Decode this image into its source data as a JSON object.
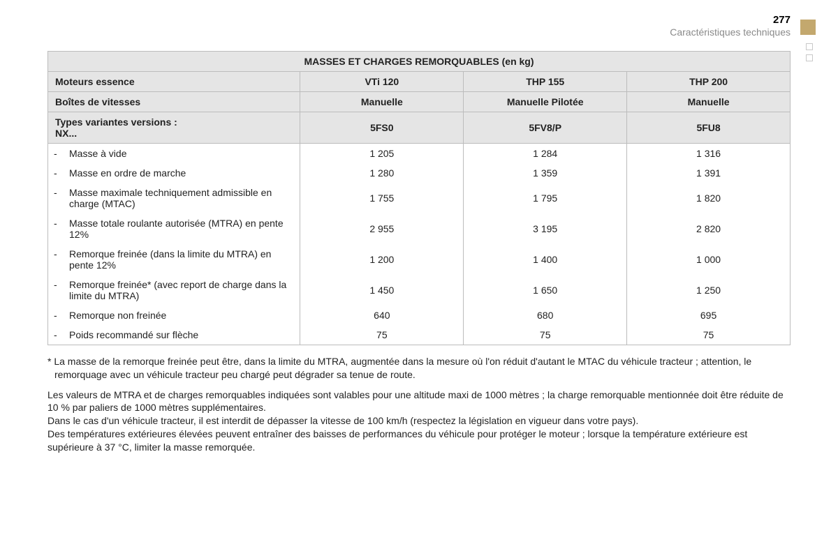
{
  "page_number": "277",
  "section_title": "Caractéristiques techniques",
  "colors": {
    "accent": "#c3a86e",
    "header_bg": "#e5e5e5",
    "border": "#bcbcbc",
    "muted_text": "#8a8a8a"
  },
  "table": {
    "title": "MASSES ET CHARGES REMORQUABLES (en kg)",
    "header_rows": [
      {
        "label": "Moteurs essence",
        "cols": [
          "VTi 120",
          "THP 155",
          "THP 200"
        ]
      },
      {
        "label": "Boîtes de vitesses",
        "cols": [
          "Manuelle",
          "Manuelle Pilotée",
          "Manuelle"
        ]
      },
      {
        "label": "Types variantes versions :\nNX...",
        "cols": [
          "5FS0",
          "5FV8/P",
          "5FU8"
        ]
      }
    ],
    "rows": [
      {
        "label": "Masse à vide",
        "values": [
          "1 205",
          "1 284",
          "1 316"
        ]
      },
      {
        "label": "Masse en ordre de marche",
        "values": [
          "1 280",
          "1 359",
          "1 391"
        ]
      },
      {
        "label": "Masse maximale techniquement admissible en charge (MTAC)",
        "values": [
          "1 755",
          "1 795",
          "1 820"
        ]
      },
      {
        "label": "Masse totale roulante autorisée (MTRA) en pente 12%",
        "values": [
          "2 955",
          "3 195",
          "2 820"
        ]
      },
      {
        "label": "Remorque freinée (dans la limite du MTRA) en pente 12%",
        "values": [
          "1 200",
          "1 400",
          "1 000"
        ]
      },
      {
        "label": "Remorque freinée* (avec report de charge dans la limite du MTRA)",
        "values": [
          "1 450",
          "1 650",
          "1 250"
        ]
      },
      {
        "label": "Remorque non freinée",
        "values": [
          "640",
          "680",
          "695"
        ]
      },
      {
        "label": "Poids recommandé sur flèche",
        "values": [
          "75",
          "75",
          "75"
        ]
      }
    ],
    "col_widths": [
      "34%",
      "22%",
      "22%",
      "22%"
    ]
  },
  "footnotes": {
    "star": "* La masse de la remorque freinée peut être, dans la limite du MTRA, augmentée dans la mesure où l'on réduit d'autant le MTAC du véhicule tracteur ; attention, le remorquage avec un véhicule tracteur peu chargé peut dégrader sa tenue de route.",
    "para": "Les valeurs de MTRA et de charges remorquables indiquées sont valables pour une altitude maxi de 1000 mètres ; la charge remorquable mentionnée doit être réduite de 10 % par paliers de 1000 mètres supplémentaires.\nDans le cas d'un véhicule tracteur, il est interdit de dépasser la vitesse de 100 km/h (respectez la législation en vigueur dans votre pays).\nDes températures extérieures élevées peuvent entraîner des baisses de performances du véhicule pour protéger le moteur ; lorsque la température extérieure est supérieure à 37 °C, limiter la masse remorquée."
  }
}
